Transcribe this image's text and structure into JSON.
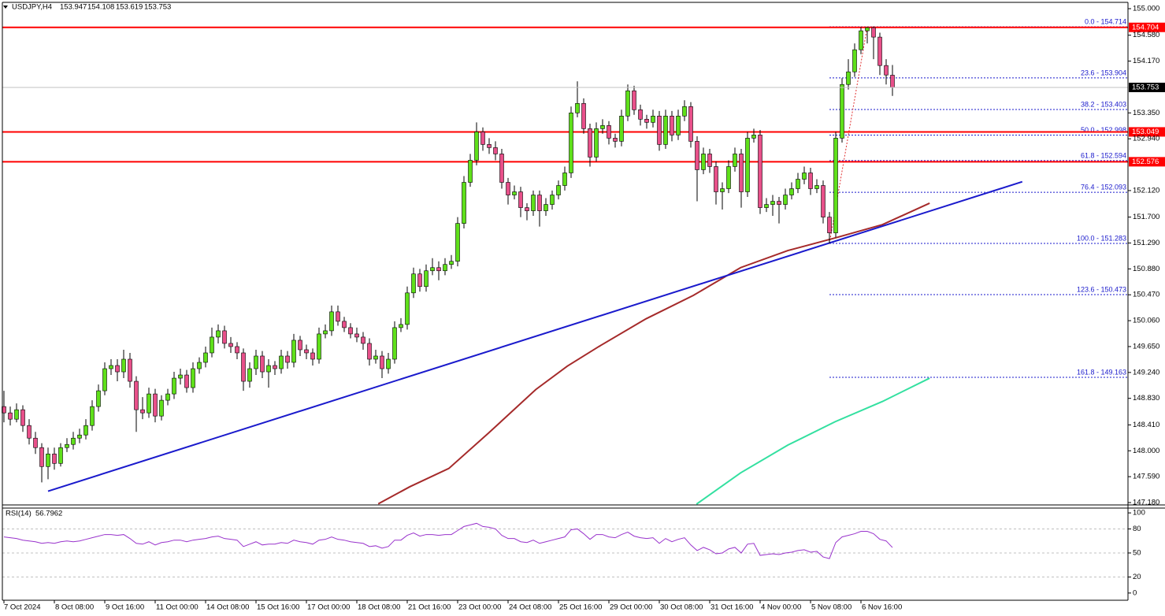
{
  "chart_data": {
    "type": "candlestick",
    "symbol": "USDJPY,H4",
    "up_color": "#5fe01a",
    "down_color": "#e8508a",
    "categories": [
      "7 Oct 2024",
      null,
      null,
      null,
      null,
      null,
      null,
      null,
      "8 Oct 08:00",
      null,
      null,
      null,
      null,
      null,
      null,
      null,
      "9 Oct 16:00",
      null,
      null,
      null,
      null,
      null,
      null,
      null,
      "11 Oct 00:00",
      null,
      null,
      null,
      null,
      null,
      null,
      null,
      "14 Oct 08:00",
      null,
      null,
      null,
      null,
      null,
      null,
      null,
      "15 Oct 16:00",
      null,
      null,
      null,
      null,
      null,
      null,
      null,
      "17 Oct 00:00",
      null,
      null,
      null,
      null,
      null,
      null,
      null,
      "18 Oct 08:00",
      null,
      null,
      null,
      null,
      null,
      null,
      null,
      "21 Oct 16:00",
      null,
      null,
      null,
      null,
      null,
      null,
      null,
      "23 Oct 00:00",
      null,
      null,
      null,
      null,
      null,
      null,
      null,
      "24 Oct 08:00",
      null,
      null,
      null,
      null,
      null,
      null,
      null,
      "25 Oct 16:00",
      null,
      null,
      null,
      null,
      null,
      null,
      null,
      "29 Oct 00:00",
      null,
      null,
      null,
      null,
      null,
      null,
      null,
      "30 Oct 08:00",
      null,
      null,
      null,
      null,
      null,
      null,
      null,
      "31 Oct 16:00",
      null,
      null,
      null,
      null,
      null,
      null,
      null,
      "4 Nov 00:00",
      null,
      null,
      null,
      null,
      null,
      null,
      null,
      "5 Nov 08:00",
      null,
      null,
      null,
      null,
      null,
      null,
      null,
      "6 Nov 16:00",
      null,
      null,
      null,
      null,
      null
    ],
    "open": [
      148.7,
      148.6,
      148.5,
      148.65,
      148.4,
      148.2,
      148.05,
      147.75,
      147.95,
      147.8,
      148.05,
      148.1,
      148.2,
      148.25,
      148.4,
      148.7,
      148.95,
      149.3,
      149.35,
      149.25,
      149.45,
      149.1,
      148.65,
      148.6,
      148.9,
      148.55,
      148.8,
      148.9,
      149.15,
      149.2,
      149.0,
      149.3,
      149.4,
      149.55,
      149.8,
      149.9,
      149.7,
      149.65,
      149.55,
      149.1,
      149.3,
      149.5,
      149.25,
      149.35,
      149.3,
      149.5,
      149.4,
      149.75,
      149.6,
      149.55,
      149.45,
      149.85,
      149.9,
      150.2,
      150.05,
      149.95,
      149.85,
      149.8,
      149.7,
      149.45,
      149.5,
      149.3,
      149.45,
      149.95,
      150.0,
      150.5,
      150.8,
      150.6,
      150.85,
      150.9,
      150.85,
      150.95,
      151.0,
      151.6,
      152.25,
      152.6,
      153.05,
      152.85,
      152.8,
      152.7,
      152.25,
      152.05,
      152.1,
      151.85,
      151.8,
      152.05,
      151.8,
      151.9,
      152.05,
      152.2,
      152.4,
      153.35,
      153.5,
      153.1,
      152.65,
      153.1,
      153.15,
      152.95,
      152.9,
      153.3,
      153.7,
      153.4,
      153.25,
      153.2,
      153.3,
      152.85,
      153.3,
      153.0,
      153.3,
      153.45,
      152.9,
      152.45,
      152.7,
      152.5,
      152.1,
      152.15,
      152.5,
      152.7,
      152.1,
      152.95,
      153.0,
      151.85,
      151.9,
      151.95,
      151.9,
      152.05,
      152.15,
      152.3,
      152.4,
      152.15,
      152.2,
      151.7,
      151.45,
      152.95,
      153.8,
      154.0,
      154.35,
      154.65,
      154.7,
      154.55,
      154.1,
      153.947
    ],
    "high": [
      148.95,
      148.7,
      148.75,
      148.72,
      148.5,
      148.3,
      148.12,
      148.05,
      148.05,
      148.12,
      148.2,
      148.3,
      148.35,
      148.5,
      148.8,
      149.05,
      149.4,
      149.45,
      149.45,
      149.6,
      149.55,
      149.18,
      148.85,
      149.0,
      148.98,
      148.88,
      148.98,
      149.25,
      149.3,
      149.28,
      149.4,
      149.48,
      149.65,
      149.95,
      150.0,
      149.98,
      149.8,
      149.72,
      149.62,
      149.4,
      149.6,
      149.58,
      149.45,
      149.42,
      149.6,
      149.58,
      149.85,
      149.82,
      149.68,
      149.62,
      149.95,
      150.0,
      150.3,
      150.3,
      150.12,
      150.02,
      149.95,
      149.88,
      149.78,
      149.6,
      149.58,
      149.55,
      150.05,
      150.1,
      150.6,
      150.9,
      150.88,
      150.95,
      151.05,
      151.0,
      151.05,
      151.1,
      151.7,
      152.35,
      152.7,
      153.2,
      153.12,
      152.95,
      152.9,
      152.78,
      152.32,
      152.2,
      152.18,
      151.92,
      152.12,
      152.12,
      152.0,
      152.12,
      152.28,
      152.5,
      153.45,
      153.85,
      153.58,
      153.18,
      153.2,
      153.25,
      153.22,
      153.02,
      153.4,
      153.8,
      153.78,
      153.48,
      153.32,
      153.4,
      153.38,
      153.4,
      153.38,
      153.4,
      153.55,
      153.52,
      152.98,
      152.8,
      152.78,
      152.58,
      152.25,
      152.6,
      152.8,
      152.78,
      153.05,
      153.1,
      153.08,
      152.0,
      152.05,
      152.02,
      152.15,
      152.25,
      152.4,
      152.5,
      152.48,
      152.3,
      152.28,
      151.78,
      153.05,
      153.9,
      154.2,
      154.45,
      154.71,
      154.71,
      154.72,
      154.62,
      154.2,
      154.108
    ],
    "low": [
      148.45,
      148.4,
      148.45,
      148.3,
      148.1,
      147.95,
      147.5,
      147.55,
      147.7,
      147.75,
      147.98,
      148.02,
      148.12,
      148.18,
      148.32,
      148.62,
      148.88,
      149.2,
      149.1,
      149.15,
      149.0,
      148.3,
      148.5,
      148.52,
      148.45,
      148.48,
      148.72,
      148.82,
      149.05,
      148.92,
      148.92,
      149.22,
      149.32,
      149.48,
      149.7,
      149.62,
      149.55,
      149.45,
      148.95,
      149.0,
      149.2,
      149.15,
      149.0,
      149.2,
      149.22,
      149.3,
      149.32,
      149.5,
      149.45,
      149.35,
      149.38,
      149.78,
      149.82,
      149.98,
      149.88,
      149.78,
      149.72,
      149.6,
      149.35,
      149.38,
      149.15,
      149.22,
      149.38,
      149.88,
      149.92,
      150.42,
      150.52,
      150.52,
      150.78,
      150.7,
      150.78,
      150.88,
      150.92,
      151.52,
      152.18,
      152.52,
      152.75,
      152.7,
      152.6,
      152.15,
      151.9,
      151.98,
      151.7,
      151.65,
      151.72,
      151.55,
      151.72,
      151.82,
      151.98,
      152.12,
      152.32,
      153.28,
      153.02,
      152.5,
      152.58,
      153.02,
      152.85,
      152.8,
      152.82,
      153.22,
      153.32,
      153.15,
      153.1,
      153.12,
      152.75,
      152.78,
      152.9,
      152.92,
      153.22,
      152.8,
      151.95,
      152.38,
      152.4,
      151.9,
      151.82,
      152.08,
      152.42,
      151.85,
      152.02,
      152.88,
      151.75,
      151.78,
      151.72,
      151.6,
      151.82,
      151.98,
      152.08,
      152.22,
      152.05,
      152.08,
      151.6,
      151.28,
      151.38,
      152.88,
      153.72,
      153.92,
      154.28,
      154.45,
      154.2,
      153.95,
      153.8,
      153.619
    ],
    "close": [
      148.6,
      148.5,
      148.65,
      148.4,
      148.2,
      148.05,
      147.75,
      147.95,
      147.8,
      148.05,
      148.1,
      148.2,
      148.25,
      148.4,
      148.7,
      148.95,
      149.3,
      149.35,
      149.25,
      149.45,
      149.1,
      148.65,
      148.6,
      148.9,
      148.55,
      148.8,
      148.9,
      149.15,
      149.2,
      149.0,
      149.3,
      149.4,
      149.55,
      149.8,
      149.9,
      149.7,
      149.65,
      149.55,
      149.1,
      149.3,
      149.5,
      149.25,
      149.35,
      149.3,
      149.5,
      149.4,
      149.75,
      149.6,
      149.55,
      149.45,
      149.85,
      149.9,
      150.2,
      150.05,
      149.95,
      149.85,
      149.8,
      149.7,
      149.45,
      149.5,
      149.3,
      149.45,
      149.95,
      150.0,
      150.5,
      150.8,
      150.6,
      150.85,
      150.9,
      150.85,
      150.95,
      151.0,
      151.6,
      152.25,
      152.6,
      153.05,
      152.85,
      152.8,
      152.7,
      152.25,
      152.05,
      152.1,
      151.85,
      151.8,
      152.05,
      151.8,
      151.9,
      152.05,
      152.2,
      152.4,
      153.35,
      153.5,
      153.1,
      152.65,
      153.1,
      153.15,
      152.95,
      152.9,
      153.3,
      153.7,
      153.4,
      153.25,
      153.2,
      153.3,
      152.85,
      153.3,
      153.0,
      153.3,
      153.45,
      152.9,
      152.45,
      152.7,
      152.5,
      152.1,
      152.15,
      152.5,
      152.7,
      152.1,
      152.95,
      153.0,
      151.85,
      151.9,
      151.95,
      151.9,
      152.05,
      152.15,
      152.3,
      152.4,
      152.15,
      152.2,
      151.7,
      151.45,
      152.95,
      153.8,
      154.0,
      154.35,
      154.65,
      154.7,
      154.55,
      154.1,
      153.95,
      153.753
    ],
    "ylim": [
      147.155,
      155.1
    ],
    "yticks": [
      {
        "value": 155,
        "label": "155.000"
      },
      {
        "value": 154.58,
        "label": "154.580"
      },
      {
        "value": 154.17,
        "label": "154.170"
      },
      {
        "value": 153.35,
        "label": "153.350"
      },
      {
        "value": 152.94,
        "label": "152.940"
      },
      {
        "value": 152.12,
        "label": "152.120"
      },
      {
        "value": 151.7,
        "label": "151.700"
      },
      {
        "value": 151.29,
        "label": "151.290"
      },
      {
        "value": 150.88,
        "label": "150.880"
      },
      {
        "value": 150.47,
        "label": "150.470"
      },
      {
        "value": 150.06,
        "label": "150.060"
      },
      {
        "value": 149.65,
        "label": "149.650"
      },
      {
        "value": 149.24,
        "label": "149.240"
      },
      {
        "value": 148.83,
        "label": "148.830"
      },
      {
        "value": 148.41,
        "label": "148.410"
      },
      {
        "value": 148,
        "label": "148.000"
      },
      {
        "value": 147.59,
        "label": "147.590"
      },
      {
        "value": 147.18,
        "label": "147.180"
      }
    ],
    "levels": [
      154.704,
      153.049,
      152.576
    ],
    "level_color": "#ff0000",
    "fibonacci": {
      "color": "#1a1acc",
      "levels": [
        {
          "value": 154.714,
          "label": "0.0 - 154.714"
        },
        {
          "value": 153.904,
          "label": "23.6 - 153.904"
        },
        {
          "value": 153.403,
          "label": "38.2 - 153.403"
        },
        {
          "value": 152.998,
          "label": "50.0 - 152.998"
        },
        {
          "value": 152.594,
          "label": "61.8 - 152.594"
        },
        {
          "value": 152.093,
          "label": "76.4 - 152.093"
        },
        {
          "value": 151.283,
          "label": "100.0 - 151.283"
        },
        {
          "value": 150.473,
          "label": "123.6 - 150.473"
        },
        {
          "value": 149.163,
          "label": "161.8 - 149.163"
        }
      ]
    },
    "trend_line": {
      "color": "#1a1acc",
      "x": [
        7,
        161.6
      ],
      "values": [
        147.36,
        152.26
      ]
    },
    "moving_averages": [
      {
        "color": "#a52a2a",
        "x": [
          59.4,
          64.4,
          70.6,
          76.9,
          84.4,
          89.4,
          94.4,
          101.9,
          109.4,
          116.9,
          124.4,
          131.9,
          139.4,
          146.9
        ],
        "values": [
          147.16,
          147.43,
          147.72,
          148.28,
          148.97,
          149.34,
          149.65,
          150.09,
          150.46,
          150.9,
          151.17,
          151.37,
          151.58,
          151.92
        ]
      },
      {
        "color": "#33e0a0",
        "x": [
          109.9,
          116.9,
          124.4,
          131.9,
          139.4,
          146.9
        ],
        "values": [
          147.155,
          147.65,
          148.09,
          148.46,
          148.78,
          149.15
        ]
      }
    ],
    "rsi": {
      "title": "RSI(14)",
      "color": "#9933cc",
      "ylim": [
        -9,
        106
      ],
      "yticks": [
        100,
        80,
        50,
        20,
        0
      ],
      "levels": [
        80,
        50,
        20
      ],
      "values": [
        70,
        69,
        68,
        66,
        65,
        64,
        62,
        63,
        62,
        64,
        65,
        64,
        65,
        67,
        69,
        71,
        73,
        73,
        72,
        73,
        68,
        62,
        61,
        64,
        60,
        63,
        64,
        66,
        66,
        64,
        66,
        67,
        68,
        70,
        71,
        68,
        67,
        66,
        58,
        61,
        64,
        60,
        61,
        61,
        63,
        62,
        66,
        64,
        63,
        61,
        66,
        67,
        70,
        67,
        66,
        64,
        63,
        62,
        58,
        59,
        56,
        58,
        66,
        66,
        72,
        75,
        71,
        73,
        73,
        72,
        73,
        73,
        78,
        83,
        85,
        87,
        83,
        82,
        80,
        72,
        68,
        68,
        64,
        63,
        66,
        62,
        64,
        66,
        68,
        70,
        79,
        80,
        74,
        67,
        73,
        73,
        70,
        69,
        73,
        76,
        71,
        69,
        68,
        69,
        62,
        68,
        64,
        67,
        69,
        60,
        53,
        57,
        54,
        49,
        50,
        55,
        57,
        50,
        61,
        62,
        47,
        48,
        49,
        48,
        50,
        51,
        53,
        54,
        51,
        52,
        45,
        43,
        63,
        70,
        72,
        74,
        77,
        77,
        74,
        67,
        65,
        56.7962
      ]
    }
  }
}
